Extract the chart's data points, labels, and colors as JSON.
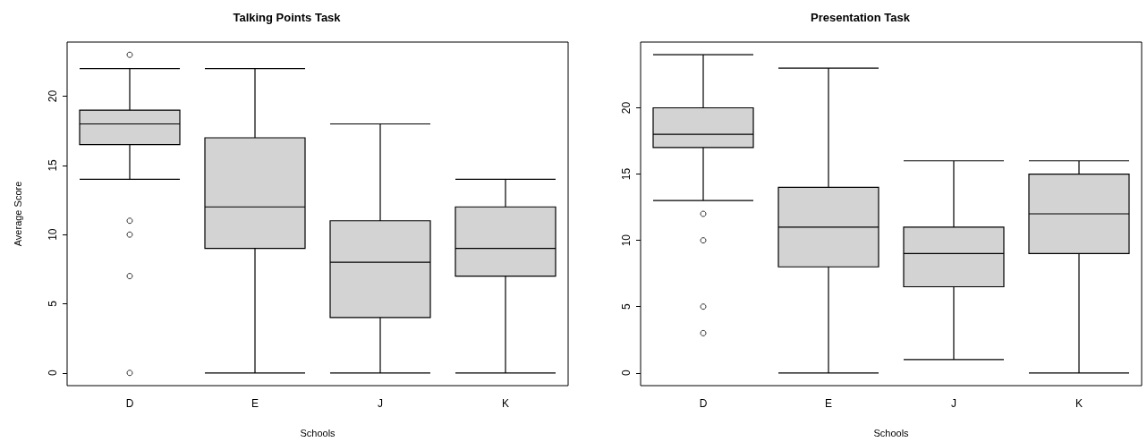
{
  "chart_data": [
    {
      "type": "box",
      "title": "Talking Points Task",
      "xlabel": "Schools",
      "ylabel": "Average Score",
      "categories": [
        "D",
        "E",
        "J",
        "K"
      ],
      "ylim": [
        -0.92,
        23.92
      ],
      "yticks": [
        0,
        5,
        10,
        15,
        20
      ],
      "series": [
        {
          "color": "#d3d3d3",
          "boxes": [
            {
              "low": 14,
              "q1": 16.5,
              "median": 18,
              "q3": 19,
              "high": 22,
              "outliers": [
                23,
                11,
                10,
                7,
                0
              ]
            },
            {
              "low": 0,
              "q1": 9,
              "median": 12,
              "q3": 17,
              "high": 22
            },
            {
              "low": 0,
              "q1": 4,
              "median": 8,
              "q3": 11,
              "high": 18
            },
            {
              "low": 0,
              "q1": 7,
              "median": 9,
              "q3": 12,
              "high": 14
            }
          ]
        }
      ]
    },
    {
      "type": "box",
      "title": "Presentation Task",
      "xlabel": "Schools",
      "categories": [
        "D",
        "E",
        "J",
        "K"
      ],
      "ylim": [
        -0.96,
        24.96
      ],
      "yticks": [
        0,
        5,
        10,
        15,
        20
      ],
      "series": [
        {
          "color": "#d3d3d3",
          "boxes": [
            {
              "low": 13,
              "q1": 17,
              "median": 18,
              "q3": 20,
              "high": 24,
              "outliers": [
                12,
                10,
                5,
                3
              ]
            },
            {
              "low": 0,
              "q1": 8,
              "median": 11,
              "q3": 14,
              "high": 23
            },
            {
              "low": 1,
              "q1": 6.5,
              "median": 9,
              "q3": 11,
              "high": 16
            },
            {
              "low": 0,
              "q1": 9,
              "median": 12,
              "q3": 15,
              "high": 16
            }
          ]
        }
      ]
    }
  ]
}
